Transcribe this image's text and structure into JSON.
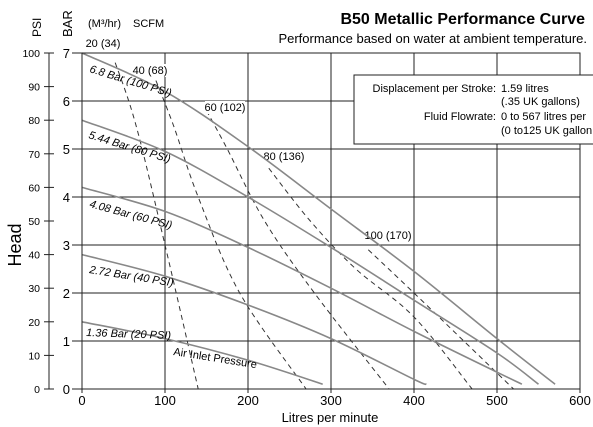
{
  "chart_data": {
    "type": "line",
    "title": "B50 Metallic Performance Curve",
    "subtitle": "Performance based on water at ambient temperature.",
    "xlabel": "Litres per minute",
    "ylabel": "Head",
    "xlim": [
      0,
      600
    ],
    "ylim_bar": [
      0,
      7
    ],
    "ylim_psi": [
      0,
      100
    ],
    "x_ticks": [
      0,
      100,
      200,
      300,
      400,
      500,
      600
    ],
    "bar_ticks": [
      0,
      1,
      2,
      3,
      4,
      5,
      6,
      7
    ],
    "psi_ticks": [
      0,
      10,
      20,
      30,
      40,
      50,
      60,
      70,
      80,
      90,
      100
    ],
    "axis_units": {
      "psi": "PSI",
      "bar": "BAR",
      "flow_unit": "(M³/hr)",
      "air_unit": "SCFM"
    },
    "grid": true,
    "series": [
      {
        "name": "6.8 Bar (100 PSI)",
        "x": [
          0,
          100,
          200,
          300,
          400,
          500,
          570
        ],
        "y": [
          7.0,
          6.2,
          5.05,
          3.75,
          2.45,
          1.05,
          0.1
        ]
      },
      {
        "name": "5.44 Bar (80 PSI)",
        "x": [
          0,
          100,
          200,
          300,
          400,
          500,
          550
        ],
        "y": [
          5.6,
          4.95,
          4.0,
          2.95,
          1.85,
          0.75,
          0.1
        ]
      },
      {
        "name": "4.08 Bar (60 PSI)",
        "x": [
          0,
          100,
          200,
          300,
          400,
          500,
          530
        ],
        "y": [
          4.2,
          3.7,
          2.95,
          2.1,
          1.2,
          0.35,
          0.1
        ]
      },
      {
        "name": "2.72 Bar (40 PSI)",
        "x": [
          0,
          100,
          200,
          300,
          400,
          415
        ],
        "y": [
          2.8,
          2.35,
          1.75,
          1.05,
          0.2,
          0.1
        ]
      },
      {
        "name": "1.36 Bar (20 PSI)",
        "x": [
          0,
          100,
          200,
          290
        ],
        "y": [
          1.4,
          1.05,
          0.6,
          0.1
        ]
      }
    ],
    "air_consumption_curves": [
      {
        "name": "20 (34)",
        "x": [
          40,
          65,
          100,
          140
        ],
        "y": [
          6.8,
          5.5,
          3.0,
          0.0
        ]
      },
      {
        "name": "40 (68)",
        "x": [
          85,
          110,
          140,
          190,
          270
        ],
        "y": [
          6.6,
          5.5,
          4.0,
          2.0,
          0.0
        ]
      },
      {
        "name": "60 (102)",
        "x": [
          150,
          175,
          220,
          280,
          370
        ],
        "y": [
          5.8,
          5.0,
          3.5,
          2.0,
          0.0
        ]
      },
      {
        "name": "80 (136)",
        "x": [
          225,
          275,
          330,
          400,
          470
        ],
        "y": [
          4.6,
          3.5,
          2.5,
          1.5,
          0.0
        ]
      },
      {
        "name": "100 (170)",
        "x": [
          345,
          400,
          460,
          520
        ],
        "y": [
          2.9,
          2.0,
          1.0,
          0.0
        ]
      }
    ],
    "air_label": "Air Inlet Pressure",
    "specs": [
      {
        "label": "Displacement per Stroke:",
        "value": "1.59 litres",
        "value2": "(.35 UK gallons)"
      },
      {
        "label": "Fluid Flowrate:",
        "value": "0 to 567 litres per",
        "value2": "(0 to125 UK gallon"
      }
    ]
  }
}
